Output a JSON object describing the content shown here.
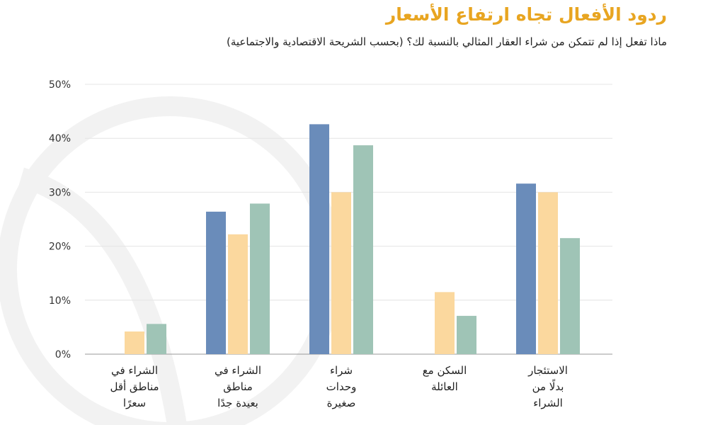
{
  "chart_data": {
    "type": "bar",
    "title": "ردود الأفعال تجاه ارتفاع الأسعار",
    "subtitle": "ماذا تفعل إذا لم تتمكن من شراء العقار المثالي بالنسبة لك؟  (بحسب الشريحة الاقتصادية والاجتماعية)",
    "categories": [
      [
        "الشراء في",
        "مناطق أقل",
        "سعرًا"
      ],
      [
        "الشراء في",
        "مناطق",
        "بعيدة جدًا"
      ],
      [
        "شراء",
        "وحدات",
        "صغيرة"
      ],
      [
        "السكن مع",
        "العائلة"
      ],
      [
        "الاستئجار",
        "بدلًا من",
        "الشراء"
      ]
    ],
    "series": [
      {
        "name": "series-1",
        "color": "#6a8cba",
        "values": [
          0,
          26.4,
          42.6,
          0,
          31.6
        ]
      },
      {
        "name": "series-2",
        "color": "#fbd89e",
        "values": [
          4.2,
          22.2,
          30,
          11.5,
          30
        ]
      },
      {
        "name": "series-3",
        "color": "#9fc4b6",
        "values": [
          5.6,
          27.9,
          38.7,
          7.1,
          21.5
        ]
      }
    ],
    "yticks": [
      "0%",
      "10%",
      "20%",
      "30%",
      "40%",
      "50%"
    ],
    "ylim": [
      0,
      50
    ],
    "grid": true,
    "xlabel": "",
    "ylabel": ""
  }
}
